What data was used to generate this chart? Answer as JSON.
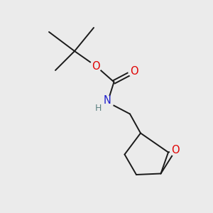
{
  "background_color": "#ebebeb",
  "bond_color": "#1a1a1a",
  "bond_width": 1.4,
  "atom_colors": {
    "O": "#e00000",
    "N": "#2020cc",
    "H": "#5a8080",
    "C": "#1a1a1a"
  },
  "font_size_atom": 10.5,
  "font_size_H": 9.0,
  "figsize": [
    3.0,
    3.0
  ],
  "dpi": 100
}
